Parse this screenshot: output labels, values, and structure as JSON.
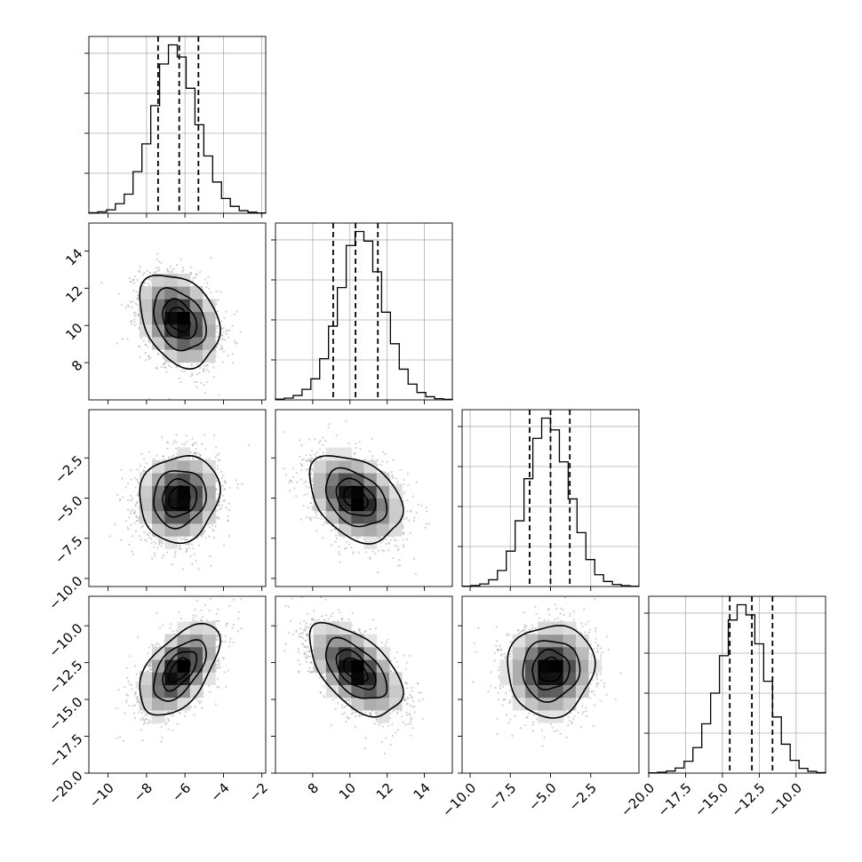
{
  "chart_data": {
    "type": "corner",
    "parameters": [
      {
        "index": 0,
        "range": [
          -11,
          -1.8
        ],
        "ticks": [
          -10,
          -8,
          -6,
          -4,
          -2
        ],
        "tick_labels": [
          "−10",
          "−8",
          "−6",
          "−4",
          "−2"
        ],
        "mean": -6.3,
        "sd": 1.0,
        "quantiles": [
          -7.4,
          -6.3,
          -5.3
        ],
        "hist_bins": 20,
        "hist_grid": true
      },
      {
        "index": 1,
        "range": [
          6.0,
          15.5
        ],
        "ticks": [
          8,
          10,
          12,
          14
        ],
        "tick_labels": [
          "8",
          "10",
          "12",
          "14"
        ],
        "mean": 10.3,
        "sd": 1.2,
        "quantiles": [
          9.1,
          10.3,
          11.5
        ],
        "hist_bins": 20,
        "hist_grid": true
      },
      {
        "index": 2,
        "range": [
          -10.5,
          0.5
        ],
        "ticks": [
          -10.0,
          -7.5,
          -5.0,
          -2.5
        ],
        "tick_labels": [
          "−10.0",
          "−7.5",
          "−5.0",
          "−2.5"
        ],
        "mean": -5.0,
        "sd": 1.3,
        "quantiles": [
          -6.3,
          -5.0,
          -3.8
        ],
        "hist_bins": 20,
        "hist_grid": true
      },
      {
        "index": 3,
        "range": [
          -20.0,
          -8.0
        ],
        "ticks": [
          -20.0,
          -17.5,
          -15.0,
          -12.5,
          -10.0
        ],
        "tick_labels": [
          "−20.0",
          "−17.5",
          "−15.0",
          "−12.5",
          "−10.0"
        ],
        "mean": -13.0,
        "sd": 1.5,
        "quantiles": [
          -14.5,
          -13.0,
          -11.6
        ],
        "hist_bins": 20,
        "hist_grid": true
      }
    ],
    "correlations": [
      {
        "row": 1,
        "col": 0,
        "rho": -0.3
      },
      {
        "row": 2,
        "col": 0,
        "rho": 0.1
      },
      {
        "row": 2,
        "col": 1,
        "rho": -0.35
      },
      {
        "row": 3,
        "col": 0,
        "rho": 0.55
      },
      {
        "row": 3,
        "col": 1,
        "rho": -0.55
      },
      {
        "row": 3,
        "col": 2,
        "rho": 0.05
      }
    ],
    "histogram_counts": [
      [
        3,
        8,
        20,
        55,
        110,
        240,
        400,
        620,
        860,
        970,
        900,
        720,
        510,
        330,
        180,
        85,
        40,
        15,
        6,
        2
      ],
      [
        4,
        10,
        25,
        60,
        120,
        235,
        420,
        640,
        880,
        960,
        905,
        730,
        500,
        320,
        175,
        90,
        42,
        18,
        7,
        3
      ],
      [
        2,
        6,
        15,
        40,
        95,
        210,
        390,
        640,
        880,
        1000,
        930,
        740,
        520,
        320,
        160,
        70,
        30,
        12,
        5,
        2
      ],
      [
        2,
        5,
        12,
        30,
        70,
        150,
        290,
        470,
        690,
        900,
        990,
        930,
        760,
        540,
        330,
        170,
        75,
        28,
        10,
        3
      ]
    ],
    "grid": true,
    "contour_levels_sigma": [
      0.5,
      1.0,
      1.5,
      2.0
    ],
    "colors": {
      "points": "#9a9a9a",
      "density": "#000000",
      "lines": "#000000",
      "grid": "#b0b0b0"
    }
  }
}
